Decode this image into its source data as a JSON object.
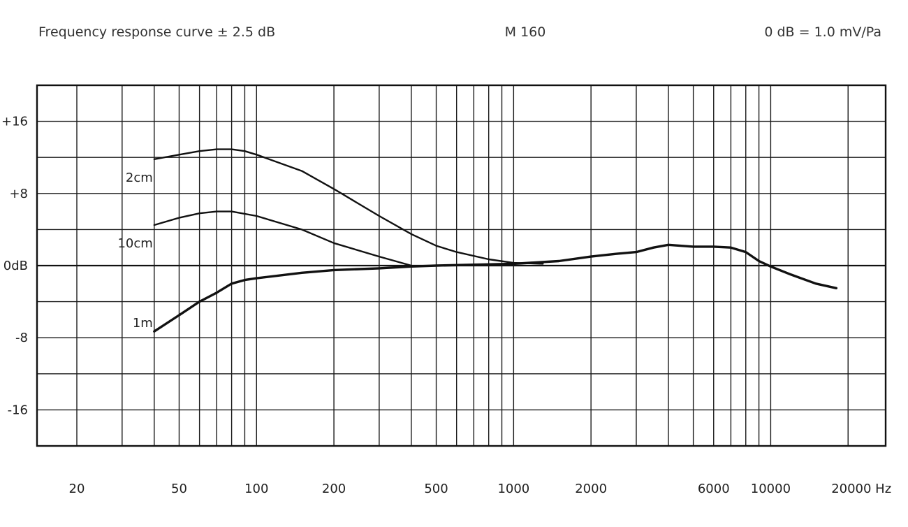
{
  "header": {
    "left": "Frequency response curve ± 2.5 dB",
    "center": "M 160",
    "right": "0 dB = 1.0 mV/Pa"
  },
  "chart_data": {
    "type": "line",
    "xscale": "log",
    "xlim": [
      14,
      28000
    ],
    "ylim": [
      -20,
      20
    ],
    "grid": true,
    "x_tick_labels": [
      {
        "value": 20,
        "label": "20"
      },
      {
        "value": 50,
        "label": "50"
      },
      {
        "value": 100,
        "label": "100"
      },
      {
        "value": 200,
        "label": "200"
      },
      {
        "value": 500,
        "label": "500"
      },
      {
        "value": 1000,
        "label": "1000"
      },
      {
        "value": 2000,
        "label": "2000"
      },
      {
        "value": 6000,
        "label": "6000"
      },
      {
        "value": 10000,
        "label": "10000"
      },
      {
        "value": 20000,
        "label": "20000 Hz"
      }
    ],
    "y_tick_labels": [
      {
        "value": 16,
        "label": "+16"
      },
      {
        "value": 8,
        "label": "+8"
      },
      {
        "value": 0,
        "label": "0dB"
      },
      {
        "value": -8,
        "label": "-8"
      },
      {
        "value": -16,
        "label": "-16"
      }
    ],
    "series": [
      {
        "name": "2cm",
        "x": [
          40,
          50,
          60,
          70,
          80,
          90,
          100,
          150,
          200,
          300,
          400,
          500,
          600,
          800,
          1000,
          1300
        ],
        "y": [
          11.8,
          12.3,
          12.7,
          12.9,
          12.9,
          12.7,
          12.3,
          10.5,
          8.5,
          5.5,
          3.5,
          2.2,
          1.5,
          0.7,
          0.3,
          0.2
        ]
      },
      {
        "name": "10cm",
        "x": [
          40,
          50,
          60,
          70,
          80,
          100,
          150,
          200,
          300,
          400
        ],
        "y": [
          4.5,
          5.3,
          5.8,
          6.0,
          6.0,
          5.5,
          4.0,
          2.5,
          1.0,
          0.0
        ]
      },
      {
        "name": "1m",
        "x": [
          40,
          50,
          60,
          70,
          80,
          90,
          100,
          150,
          200,
          300,
          400,
          500,
          700,
          1000,
          1500,
          2000,
          2500,
          3000,
          3500,
          4000,
          5000,
          6000,
          7000,
          8000,
          9000,
          10000,
          12000,
          15000,
          18000
        ],
        "y": [
          -7.3,
          -5.5,
          -4.0,
          -3.0,
          -2.0,
          -1.6,
          -1.4,
          -0.8,
          -0.5,
          -0.3,
          -0.1,
          0.0,
          0.1,
          0.2,
          0.5,
          1.0,
          1.3,
          1.5,
          2.0,
          2.3,
          2.1,
          2.1,
          2.0,
          1.5,
          0.5,
          -0.1,
          -1.0,
          -2.0,
          -2.5
        ]
      }
    ]
  }
}
